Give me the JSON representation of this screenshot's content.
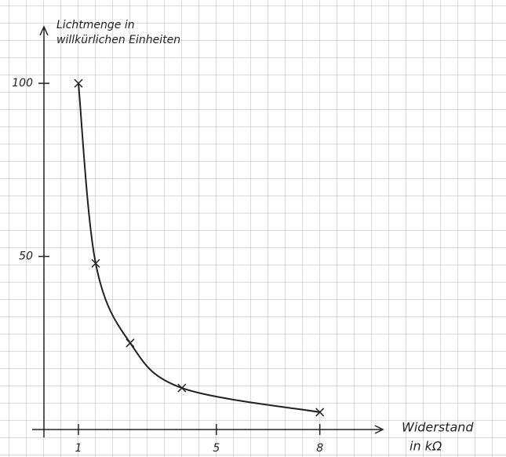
{
  "chart_data": {
    "type": "line",
    "y_label": [
      "Lichtmenge in",
      "willkürlichen Einheiten"
    ],
    "x_label": [
      "Widerstand",
      "in kΩ"
    ],
    "x": [
      1,
      1.5,
      2.5,
      4,
      8
    ],
    "values": [
      100,
      48,
      25,
      12,
      5
    ],
    "color": "#222222",
    "xlim": [
      0,
      9.6
    ],
    "xticks": [
      1,
      5,
      8
    ],
    "ylim": [
      0,
      115
    ],
    "yticks": [
      50,
      100
    ],
    "markers": "x"
  }
}
